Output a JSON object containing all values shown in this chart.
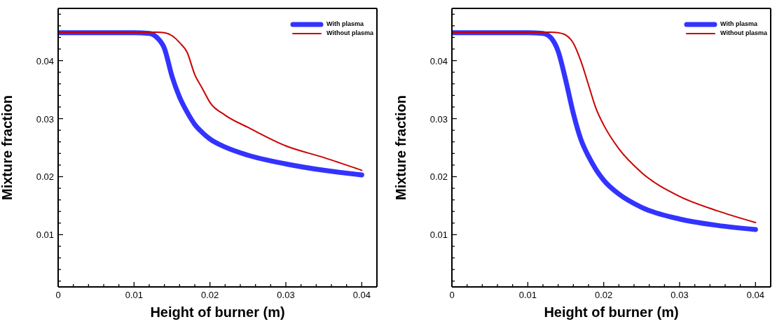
{
  "chart_data": [
    {
      "type": "line",
      "xlabel": "Height of burner (m)",
      "ylabel": "Mixture fraction",
      "legend": "top right",
      "line_style": "solid",
      "x": [
        0,
        0.005,
        0.01,
        0.012,
        0.013,
        0.014,
        0.015,
        0.016,
        0.017,
        0.018,
        0.019,
        0.02,
        0.022,
        0.025,
        0.03,
        0.035,
        0.04
      ],
      "series": [
        {
          "name": "With plasma",
          "color": "#3333ff",
          "values": [
            0.0448,
            0.0448,
            0.0448,
            0.0447,
            0.044,
            0.0421,
            0.0373,
            0.0337,
            0.0311,
            0.029,
            0.0276,
            0.0265,
            0.0251,
            0.0237,
            0.0222,
            0.0211,
            0.0203
          ]
        },
        {
          "name": "Without plasma",
          "color": "#cc0000",
          "values": [
            0.0449,
            0.0449,
            0.0449,
            0.0449,
            0.0449,
            0.0448,
            0.0443,
            0.0431,
            0.0414,
            0.0376,
            0.0352,
            0.0328,
            0.0306,
            0.0285,
            0.0253,
            0.0233,
            0.0211
          ]
        }
      ],
      "xlim": [
        0,
        0.042
      ],
      "ylim": [
        0.001,
        0.049
      ],
      "xticks": [
        0,
        {
          "value": 0.002,
          "label": null
        },
        {
          "value": 0.004,
          "label": null
        },
        {
          "value": 0.006,
          "label": null
        },
        {
          "value": 0.008,
          "label": null
        },
        0.01,
        {
          "value": 0.012,
          "label": null
        },
        {
          "value": 0.014,
          "label": null
        },
        {
          "value": 0.016,
          "label": null
        },
        {
          "value": 0.018,
          "label": null
        },
        0.02,
        {
          "value": 0.022,
          "label": null
        },
        {
          "value": 0.024,
          "label": null
        },
        {
          "value": 0.026,
          "label": null
        },
        {
          "value": 0.028,
          "label": null
        },
        0.03,
        {
          "value": 0.032,
          "label": null
        },
        {
          "value": 0.034,
          "label": null
        },
        {
          "value": 0.036,
          "label": null
        },
        {
          "value": 0.038,
          "label": null
        },
        0.04
      ],
      "yticks": [
        {
          "value": 0.002,
          "label": null
        },
        {
          "value": 0.004,
          "label": null
        },
        {
          "value": 0.006,
          "label": null
        },
        {
          "value": 0.008,
          "label": null
        },
        0.01,
        {
          "value": 0.012,
          "label": null
        },
        {
          "value": 0.014,
          "label": null
        },
        {
          "value": 0.016,
          "label": null
        },
        {
          "value": 0.018,
          "label": null
        },
        0.02,
        {
          "value": 0.022,
          "label": null
        },
        {
          "value": 0.024,
          "label": null
        },
        {
          "value": 0.026,
          "label": null
        },
        {
          "value": 0.028,
          "label": null
        },
        0.03,
        {
          "value": 0.032,
          "label": null
        },
        {
          "value": 0.034,
          "label": null
        },
        {
          "value": 0.036,
          "label": null
        },
        {
          "value": 0.038,
          "label": null
        },
        0.04,
        {
          "value": 0.042,
          "label": null
        },
        {
          "value": 0.044,
          "label": null
        },
        {
          "value": 0.046,
          "label": null
        },
        {
          "value": 0.048,
          "label": null
        }
      ]
    },
    {
      "type": "line",
      "xlabel": "Height of burner (m)",
      "ylabel": "Mixture fraction",
      "legend": "top right",
      "line_style": "solid",
      "x": [
        0,
        0.005,
        0.01,
        0.012,
        0.013,
        0.014,
        0.015,
        0.016,
        0.017,
        0.018,
        0.019,
        0.02,
        0.022,
        0.025,
        0.03,
        0.035,
        0.04
      ],
      "series": [
        {
          "name": "With plasma",
          "color": "#3333ff",
          "values": [
            0.0448,
            0.0448,
            0.0448,
            0.0447,
            0.044,
            0.0416,
            0.0366,
            0.0309,
            0.0264,
            0.0235,
            0.0212,
            0.0194,
            0.017,
            0.0147,
            0.0127,
            0.0116,
            0.0109
          ]
        },
        {
          "name": "Without plasma",
          "color": "#cc0000",
          "values": [
            0.0449,
            0.0449,
            0.0449,
            0.0449,
            0.0449,
            0.0448,
            0.0444,
            0.043,
            0.0399,
            0.0358,
            0.0317,
            0.0289,
            0.0248,
            0.0207,
            0.0166,
            0.0141,
            0.0121
          ]
        }
      ],
      "xlim": [
        0,
        0.042
      ],
      "ylim": [
        0.001,
        0.049
      ],
      "xticks": [
        0,
        {
          "value": 0.002,
          "label": null
        },
        {
          "value": 0.004,
          "label": null
        },
        {
          "value": 0.006,
          "label": null
        },
        {
          "value": 0.008,
          "label": null
        },
        0.01,
        {
          "value": 0.012,
          "label": null
        },
        {
          "value": 0.014,
          "label": null
        },
        {
          "value": 0.016,
          "label": null
        },
        {
          "value": 0.018,
          "label": null
        },
        0.02,
        {
          "value": 0.022,
          "label": null
        },
        {
          "value": 0.024,
          "label": null
        },
        {
          "value": 0.026,
          "label": null
        },
        {
          "value": 0.028,
          "label": null
        },
        0.03,
        {
          "value": 0.032,
          "label": null
        },
        {
          "value": 0.034,
          "label": null
        },
        {
          "value": 0.036,
          "label": null
        },
        {
          "value": 0.038,
          "label": null
        },
        0.04
      ],
      "yticks": [
        {
          "value": 0.002,
          "label": null
        },
        {
          "value": 0.004,
          "label": null
        },
        {
          "value": 0.006,
          "label": null
        },
        {
          "value": 0.008,
          "label": null
        },
        0.01,
        {
          "value": 0.012,
          "label": null
        },
        {
          "value": 0.014,
          "label": null
        },
        {
          "value": 0.016,
          "label": null
        },
        {
          "value": 0.018,
          "label": null
        },
        0.02,
        {
          "value": 0.022,
          "label": null
        },
        {
          "value": 0.024,
          "label": null
        },
        {
          "value": 0.026,
          "label": null
        },
        {
          "value": 0.028,
          "label": null
        },
        0.03,
        {
          "value": 0.032,
          "label": null
        },
        {
          "value": 0.034,
          "label": null
        },
        {
          "value": 0.036,
          "label": null
        },
        {
          "value": 0.038,
          "label": null
        },
        0.04,
        {
          "value": 0.042,
          "label": null
        },
        {
          "value": 0.044,
          "label": null
        },
        {
          "value": 0.046,
          "label": null
        },
        {
          "value": 0.048,
          "label": null
        }
      ]
    }
  ]
}
